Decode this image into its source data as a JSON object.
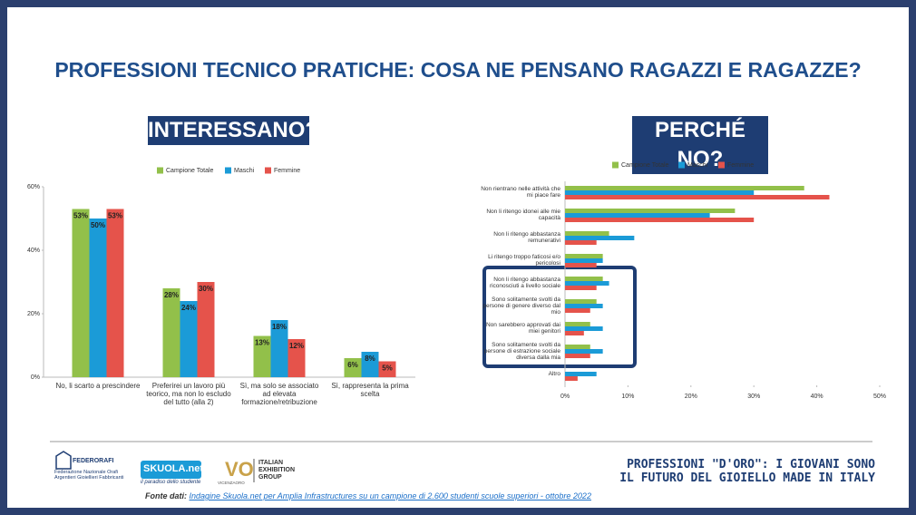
{
  "header": {
    "title": "PROFESSIONI TECNICO PRATICHE: COSA NE PENSANO RAGAZZI E RAGAZZE?"
  },
  "chart_data": [
    {
      "type": "bar",
      "title": "INTERESSANO?",
      "categories": [
        "No, li scarto a prescindere",
        "Preferirei un lavoro più teorico, ma non lo escludo del tutto (alla 2)",
        "Sì, ma solo se associato ad elevata formazione/retribuzione",
        "Sì, rappresenta la prima scelta"
      ],
      "series": [
        {
          "name": "Campione Totale",
          "color": "#92c04a",
          "values": [
            53,
            28,
            13,
            6
          ],
          "value_labels": [
            "53%",
            "28%",
            "13%",
            "6%"
          ]
        },
        {
          "name": "Maschi",
          "color": "#1b9bd7",
          "values": [
            50,
            24,
            18,
            8
          ],
          "value_labels": [
            "50%",
            "24%",
            "18%",
            "8%"
          ]
        },
        {
          "name": "Femmine",
          "color": "#e5534b",
          "values": [
            53,
            30,
            12,
            5
          ],
          "value_labels": [
            "53%",
            "30%",
            "12%",
            "5%"
          ]
        }
      ],
      "ylim": [
        0,
        60
      ],
      "yticks": [
        {
          "value": 0,
          "label": "0%"
        },
        {
          "value": 20,
          "label": "20%"
        },
        {
          "value": 40,
          "label": "40%"
        },
        {
          "value": 60,
          "label": "60%"
        }
      ]
    },
    {
      "type": "barh",
      "title": "PERCHÉ NO?",
      "categories": [
        "Non rientrano nelle attività che mi piace fare",
        "Non li ritengo idonei alle mie capacità",
        "Non li ritengo abbastanza remunerativi",
        "Li ritengo troppo faticosi e/o pericolosi",
        "Non li ritengo abbastanza riconosciuti a livello sociale",
        "Sono solitamente svolti da persone di genere diverso dal mio",
        "Non sarebbero approvati dai miei genitori",
        "Sono solitamente svolti da persone di estrazione sociale diversa dalla mia",
        "Altro"
      ],
      "series": [
        {
          "name": "Campione Totale",
          "color": "#92c04a",
          "values": [
            38,
            27,
            7,
            6,
            6,
            5,
            4,
            4,
            0
          ]
        },
        {
          "name": "Maschi",
          "color": "#1b9bd7",
          "values": [
            30,
            23,
            11,
            6,
            7,
            6,
            6,
            6,
            5
          ]
        },
        {
          "name": "Femmine",
          "color": "#e5534b",
          "values": [
            42,
            30,
            5,
            5,
            5,
            4,
            3,
            4,
            2
          ]
        }
      ],
      "xlim": [
        0,
        50
      ],
      "xticks": [
        {
          "value": 0,
          "label": "0%"
        },
        {
          "value": 10,
          "label": "10%"
        },
        {
          "value": 20,
          "label": "20%"
        },
        {
          "value": 30,
          "label": "30%"
        },
        {
          "value": 40,
          "label": "40%"
        },
        {
          "value": 50,
          "label": "50%"
        }
      ]
    }
  ],
  "footer": {
    "federorafi": {
      "name": "FEDERORAFI",
      "subtitle": "Federazione Nazionale Orafi Argentieri Gioiellieri Fabbricanti"
    },
    "skuola": {
      "name": "SKUOLA.net",
      "motto": "il paradiso dello studente"
    },
    "vicenzaoro": {
      "name": "VICENZAORO",
      "group": "ITALIAN EXHIBITION GROUP"
    },
    "tagline": [
      "PROFESSIONI \"D'ORO\": I GIOVANI SONO",
      "IL FUTURO DEL GIOIELLO MADE IN ITALY"
    ],
    "source_label": "Fonte dati:",
    "source": "Indagine Skuola.net per Amplia Infrastructures su un campione di 2.600 studenti scuole superiori - ottobre 2022"
  }
}
